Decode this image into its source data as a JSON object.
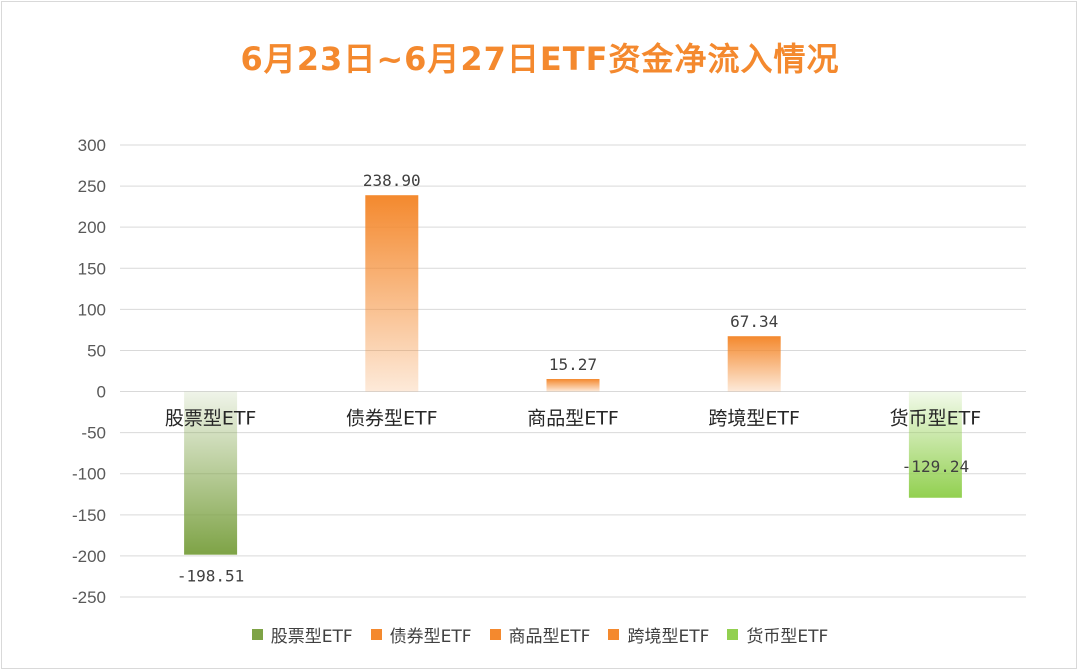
{
  "chart_data": {
    "type": "bar",
    "title": "6月23日~6月27日ETF资金净流入情况",
    "categories": [
      "股票型ETF",
      "债券型ETF",
      "商品型ETF",
      "跨境型ETF",
      "货币型ETF"
    ],
    "values": [
      -198.51,
      238.9,
      15.27,
      67.34,
      -129.24
    ],
    "data_labels": [
      "-198.51",
      "238.90",
      "15.27",
      "67.34",
      "-129.24"
    ],
    "ylim": [
      -250,
      300
    ],
    "yticks": [
      300,
      250,
      200,
      150,
      100,
      50,
      0,
      -50,
      -100,
      -150,
      -200,
      -250
    ],
    "ytick_labels": [
      "300",
      "250",
      "200",
      "150",
      "100",
      "50",
      "0",
      "-50",
      "-100",
      "-150",
      "-200",
      "-250"
    ],
    "xlabel": "",
    "ylabel": "",
    "grid": true,
    "legend_position": "bottom",
    "colors": [
      "#7ea346",
      "#f4892e",
      "#f4892e",
      "#f4892e",
      "#92d050"
    ],
    "legend": [
      {
        "name": "股票型ETF",
        "color": "#7ea346"
      },
      {
        "name": "债券型ETF",
        "color": "#f4892e"
      },
      {
        "name": "商品型ETF",
        "color": "#f4892e"
      },
      {
        "name": "跨境型ETF",
        "color": "#f4892e"
      },
      {
        "name": "货币型ETF",
        "color": "#92d050"
      }
    ]
  }
}
